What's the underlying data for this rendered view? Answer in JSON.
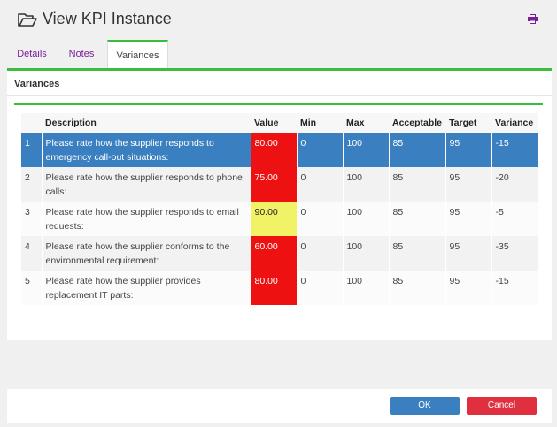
{
  "header": {
    "title": "View KPI Instance"
  },
  "tabs": [
    "Details",
    "Notes",
    "Variances"
  ],
  "section": {
    "title": "Variances"
  },
  "table": {
    "columns": [
      "Description",
      "Value",
      "Min",
      "Max",
      "Acceptable",
      "Target",
      "Variance"
    ],
    "rows": [
      [
        "1",
        "Please rate how the supplier responds to emergency call-out situations:",
        "80.00",
        "0",
        "100",
        "85",
        "95",
        "-15"
      ],
      [
        "2",
        "Please rate how the supplier responds to phone calls:",
        "75.00",
        "0",
        "100",
        "85",
        "95",
        "-20"
      ],
      [
        "3",
        "Please rate how the supplier responds to email requests:",
        "90.00",
        "0",
        "100",
        "85",
        "95",
        "-5"
      ],
      [
        "4",
        "Please rate how the supplier conforms to the environmental requirement:",
        "60.00",
        "0",
        "100",
        "85",
        "95",
        "-35"
      ],
      [
        "5",
        "Please rate how the supplier provides replacement IT parts:",
        "80.00",
        "0",
        "100",
        "85",
        "95",
        "-15"
      ]
    ],
    "value_colors": [
      "#ee1111",
      "#ee1111",
      "#f2f266",
      "#ee1111",
      "#ee1111"
    ]
  },
  "buttons": {
    "ok": "OK",
    "cancel": "Cancel"
  }
}
